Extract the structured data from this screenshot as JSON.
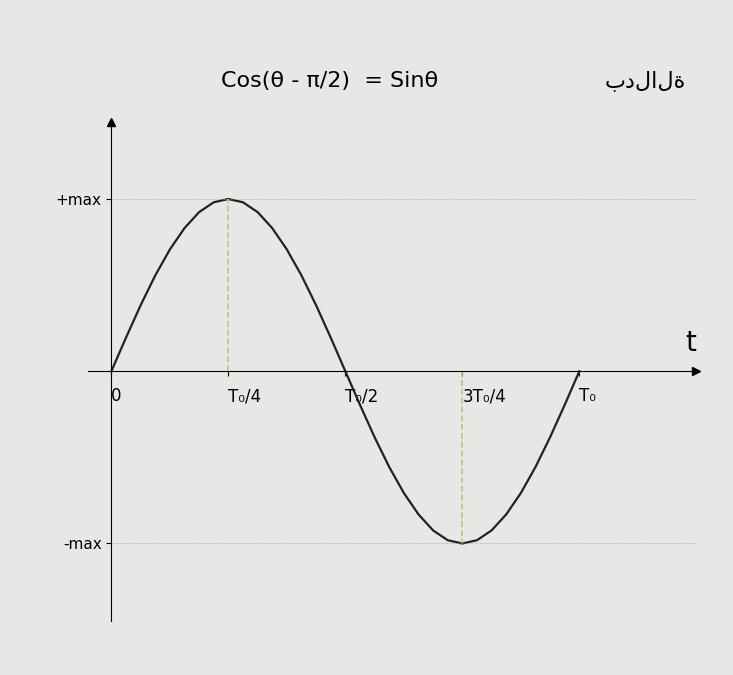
{
  "chart_data": {
    "type": "line",
    "title": "Cos(θ - π/2)  = Sinθ",
    "annotations": [
      "بدلالة"
    ],
    "x_label": "t",
    "x": [
      0,
      0.03125,
      0.0625,
      0.09375,
      0.125,
      0.15625,
      0.1875,
      0.21875,
      0.25,
      0.28125,
      0.3125,
      0.34375,
      0.375,
      0.40625,
      0.4375,
      0.46875,
      0.5,
      0.53125,
      0.5625,
      0.59375,
      0.625,
      0.65625,
      0.6875,
      0.71875,
      0.75,
      0.78125,
      0.8125,
      0.84375,
      0.875,
      0.90625,
      0.9375,
      0.96875,
      1
    ],
    "values": [
      0,
      0.195,
      0.383,
      0.556,
      0.707,
      0.831,
      0.924,
      0.981,
      1,
      0.981,
      0.924,
      0.831,
      0.707,
      0.556,
      0.383,
      0.195,
      0,
      -0.195,
      -0.383,
      -0.556,
      -0.707,
      -0.831,
      -0.924,
      -0.981,
      -1,
      -0.981,
      -0.924,
      -0.831,
      -0.707,
      -0.556,
      -0.383,
      -0.195,
      0
    ],
    "color": "#222222",
    "line_style": "solid",
    "xlim": [
      -0.05,
      1.25
    ],
    "ylim": [
      -1.45,
      1.45
    ],
    "xticks": [
      0,
      {
        "value": 0.25,
        "label": "T₀/4"
      },
      {
        "value": 0.5,
        "label": "T₀/2"
      },
      {
        "value": 0.75,
        "label": "3T₀/4"
      },
      {
        "value": 1,
        "label": "T₀"
      }
    ],
    "yticks": [
      {
        "value": 1,
        "label": "+max"
      },
      {
        "value": -1,
        "label": "-max"
      }
    ],
    "grid": false
  }
}
